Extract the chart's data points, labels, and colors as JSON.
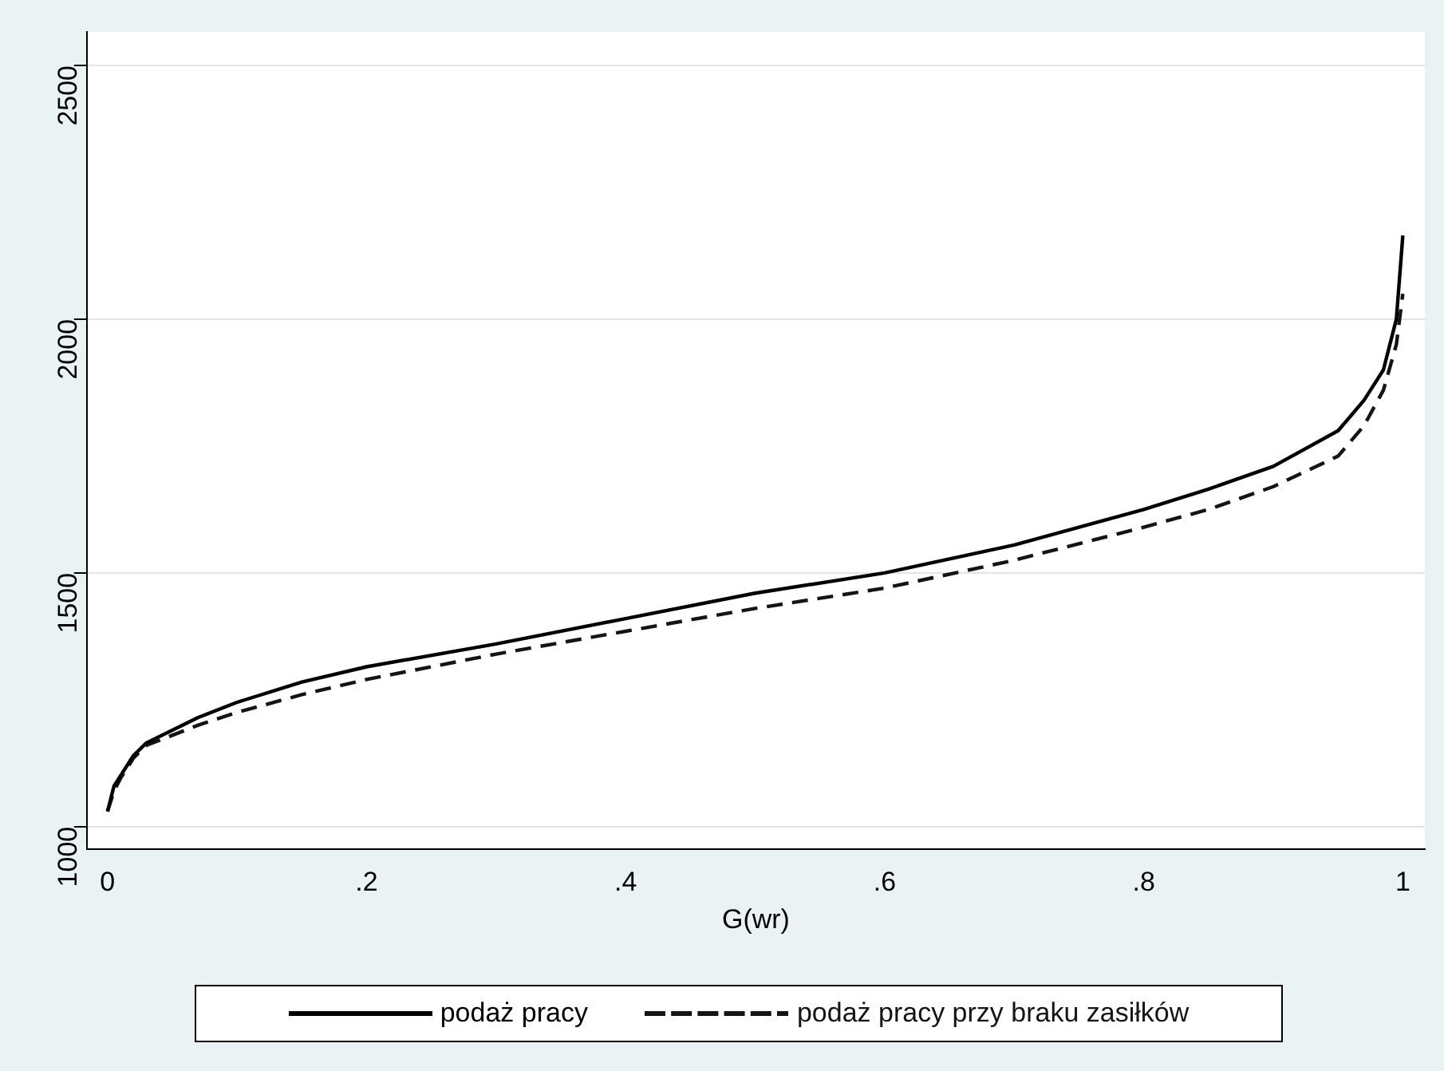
{
  "chart_data": {
    "type": "line",
    "xlabel": "G(wr)",
    "x": [
      0,
      0.005,
      0.01,
      0.02,
      0.03,
      0.05,
      0.07,
      0.1,
      0.15,
      0.2,
      0.3,
      0.4,
      0.5,
      0.6,
      0.7,
      0.8,
      0.85,
      0.9,
      0.95,
      0.97,
      0.985,
      0.995,
      1
    ],
    "series": [
      {
        "name": "podaż pracy",
        "color": "#000000",
        "line_style": "solid",
        "values": [
          1030,
          1080,
          1100,
          1140,
          1165,
          1190,
          1215,
          1245,
          1285,
          1315,
          1360,
          1410,
          1460,
          1500,
          1555,
          1625,
          1665,
          1710,
          1780,
          1840,
          1900,
          2000,
          2165
        ]
      },
      {
        "name": "podaż pracy przy braku zasiłków",
        "color": "#141414",
        "line_style": "dashed",
        "values": [
          1030,
          1070,
          1095,
          1135,
          1160,
          1180,
          1200,
          1225,
          1260,
          1290,
          1340,
          1385,
          1430,
          1470,
          1525,
          1590,
          1625,
          1670,
          1730,
          1790,
          1860,
          1950,
          2050
        ]
      }
    ],
    "xlim": [
      -0.016,
      1.017
    ],
    "xticks": [
      {
        "value": 0,
        "label": "0"
      },
      {
        "value": 0.2,
        "label": ".2"
      },
      {
        "value": 0.4,
        "label": ".4"
      },
      {
        "value": 0.6,
        "label": ".6"
      },
      {
        "value": 0.8,
        "label": ".8"
      },
      {
        "value": 1,
        "label": "1"
      }
    ],
    "ylim": [
      955,
      2566
    ],
    "yticks": [
      1000,
      1500,
      2000,
      2500
    ],
    "grid": "y",
    "legend": "bottom",
    "marker": "none"
  }
}
